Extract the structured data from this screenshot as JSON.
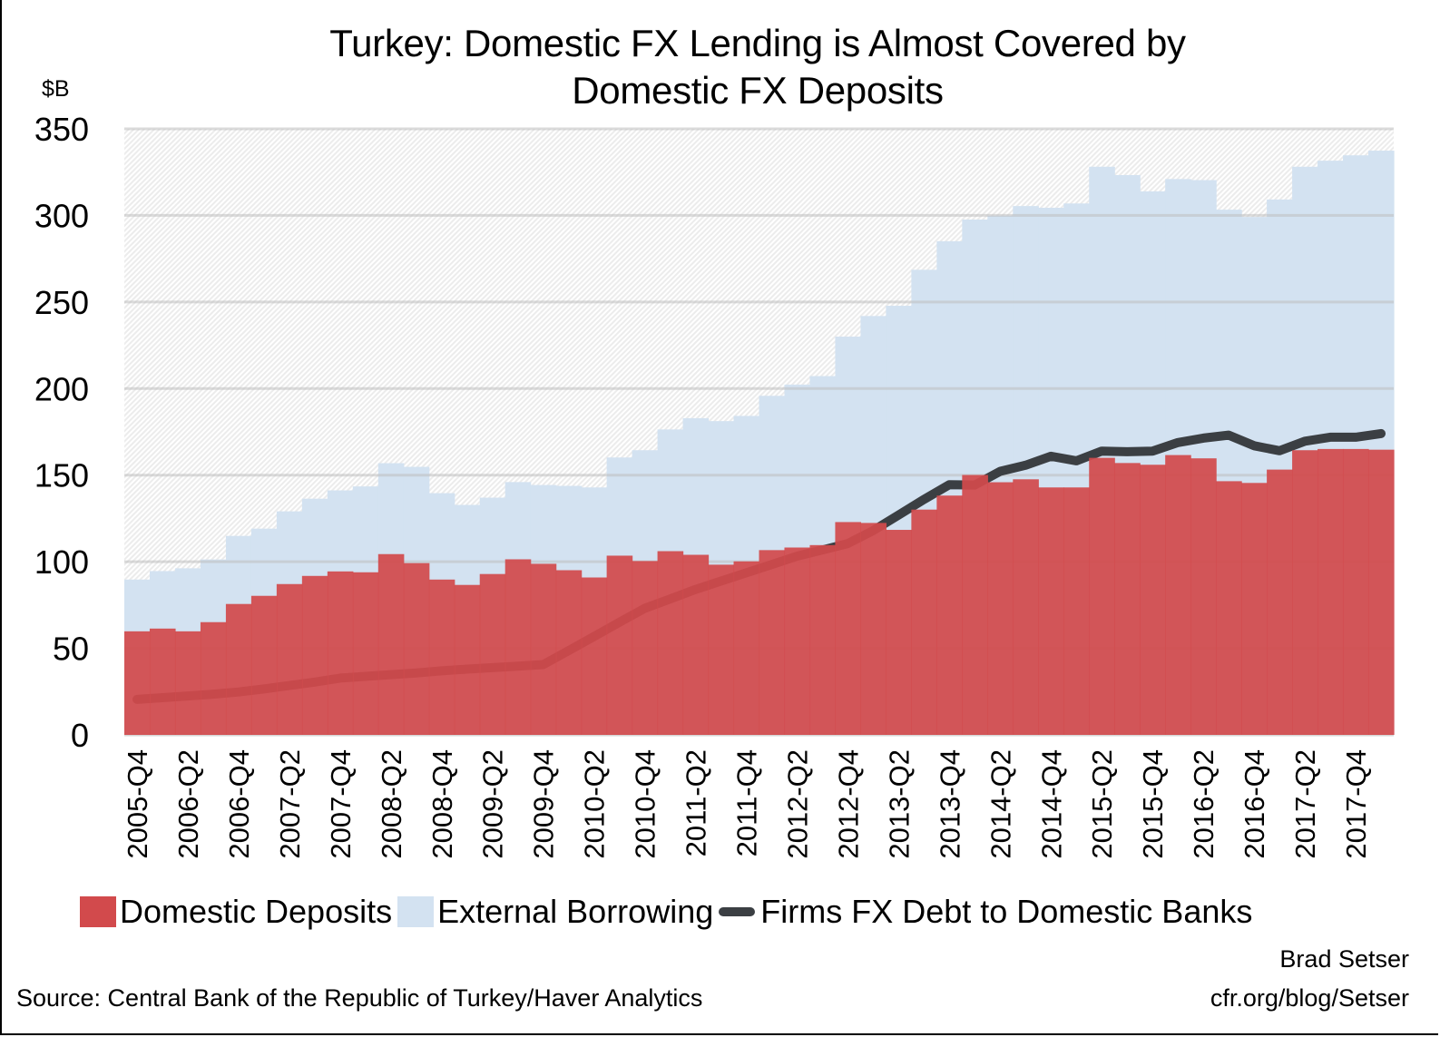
{
  "title_line1": "Turkey: Domestic FX Lending is Almost Covered by",
  "title_line2": "Domestic FX Deposits",
  "unit_label": "$B",
  "source": "Source: Central Bank of the Republic of Turkey/Haver Analytics",
  "credit": {
    "author": "Brad Setser",
    "site": "cfr.org/blog/Setser"
  },
  "legend": [
    {
      "label": "Domestic Deposits",
      "color": "#d24a4c",
      "type": "area"
    },
    {
      "label": "External Borrowing",
      "color": "#d3e2f1",
      "type": "area"
    },
    {
      "label": "Firms FX Debt to Domestic Banks",
      "color": "#3b3f43",
      "type": "line"
    }
  ],
  "chart_data": {
    "type": "bar",
    "stacked": true,
    "title": "Turkey: Domestic FX Lending is Almost Covered by Domestic FX Deposits",
    "xlabel": "",
    "ylabel": "$B",
    "ylim": [
      0,
      350
    ],
    "yticks": [
      0,
      50,
      100,
      150,
      200,
      250,
      300,
      350
    ],
    "grid": true,
    "legend_position": "bottom",
    "x_tick_labels": [
      "2005-Q4",
      "2006-Q2",
      "2006-Q4",
      "2007-Q2",
      "2007-Q4",
      "2008-Q2",
      "2008-Q4",
      "2009-Q2",
      "2009-Q4",
      "2010-Q2",
      "2010-Q4",
      "2011-Q2",
      "2011-Q4",
      "2012-Q2",
      "2012-Q4",
      "2013-Q2",
      "2013-Q4",
      "2014-Q2",
      "2014-Q4",
      "2015-Q2",
      "2015-Q4",
      "2016-Q2",
      "2016-Q4",
      "2017-Q2",
      "2017-Q4"
    ],
    "categories": [
      "2005-Q4",
      "2006-Q1",
      "2006-Q2",
      "2006-Q3",
      "2006-Q4",
      "2007-Q1",
      "2007-Q2",
      "2007-Q3",
      "2007-Q4",
      "2008-Q1",
      "2008-Q2",
      "2008-Q3",
      "2008-Q4",
      "2009-Q1",
      "2009-Q2",
      "2009-Q3",
      "2009-Q4",
      "2010-Q1",
      "2010-Q2",
      "2010-Q3",
      "2010-Q4",
      "2011-Q1",
      "2011-Q2",
      "2011-Q3",
      "2011-Q4",
      "2012-Q1",
      "2012-Q2",
      "2012-Q3",
      "2012-Q4",
      "2013-Q1",
      "2013-Q2",
      "2013-Q3",
      "2013-Q4",
      "2014-Q1",
      "2014-Q2",
      "2014-Q3",
      "2014-Q4",
      "2015-Q1",
      "2015-Q2",
      "2015-Q3",
      "2015-Q4",
      "2016-Q1",
      "2016-Q2",
      "2016-Q3",
      "2016-Q4",
      "2017-Q1",
      "2017-Q2",
      "2017-Q3",
      "2017-Q4",
      "2018-Q1"
    ],
    "series": [
      {
        "name": "Domestic Deposits",
        "type": "bar",
        "color": "#d24a4c",
        "values": [
          59.8,
          61.4,
          59.8,
          65.1,
          75.6,
          80.3,
          87.1,
          91.8,
          94.4,
          93.9,
          104.4,
          99.2,
          89.7,
          86.6,
          92.9,
          101.4,
          98.8,
          95.1,
          90.9,
          103.5,
          100.4,
          106.1,
          104.0,
          98.3,
          100.2,
          106.7,
          108.2,
          109.6,
          122.9,
          122.4,
          118.4,
          130.1,
          138.2,
          150.1,
          145.9,
          147.6,
          142.9,
          142.9,
          160.0,
          157.0,
          156.0,
          161.6,
          159.7,
          146.5,
          145.5,
          153.2,
          164.4,
          165.1,
          165.1,
          164.7
        ]
      },
      {
        "name": "External Borrowing",
        "type": "bar",
        "color": "#d3e2f1",
        "values": [
          29.9,
          33.2,
          36.4,
          36.2,
          39.3,
          38.8,
          42.0,
          44.6,
          46.8,
          49.6,
          52.5,
          55.6,
          49.9,
          46.2,
          44.1,
          44.6,
          45.5,
          48.7,
          52.0,
          56.7,
          64.0,
          70.3,
          78.9,
          82.9,
          84.0,
          89.1,
          94.1,
          97.6,
          107.1,
          119.5,
          129.4,
          138.5,
          146.9,
          147.5,
          154.0,
          157.8,
          161.5,
          164.0,
          168.1,
          166.3,
          157.9,
          159.4,
          160.7,
          156.8,
          153.6,
          156.0,
          163.7,
          166.5,
          169.6,
          172.7
        ]
      },
      {
        "name": "Firms FX Debt to Domestic Banks",
        "type": "line",
        "color": "#3b3f43",
        "values": [
          20.5,
          21.5,
          22.5,
          23.5,
          24.8,
          26.5,
          28.5,
          30.5,
          32.8,
          33.8,
          34.8,
          35.8,
          37.0,
          38.0,
          38.8,
          39.7,
          40.6,
          48.7,
          56.8,
          65.0,
          73.1,
          78.5,
          84.0,
          88.8,
          93.6,
          98.4,
          103.2,
          106.8,
          110.5,
          118.0,
          127.0,
          136.0,
          144.5,
          144.3,
          152.2,
          155.7,
          160.9,
          158.3,
          163.9,
          163.5,
          163.9,
          168.8,
          171.4,
          173.1,
          167.0,
          164.1,
          169.6,
          171.9,
          171.9,
          174.0
        ]
      }
    ]
  }
}
